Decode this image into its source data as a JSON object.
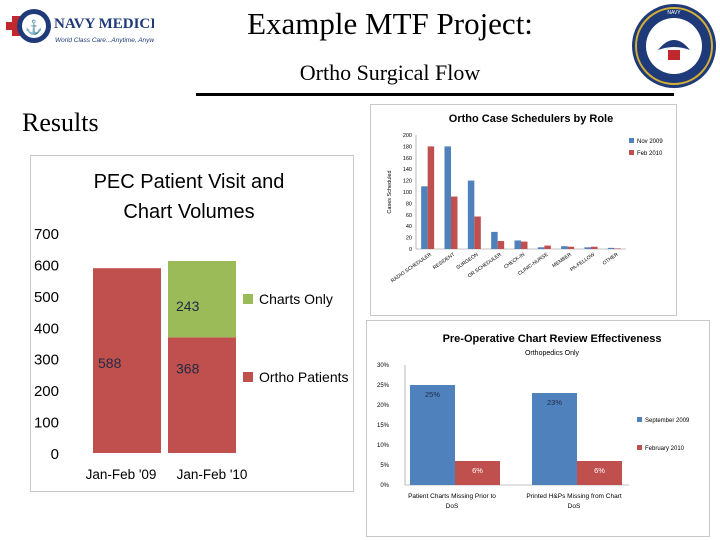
{
  "header": {
    "title": "Example MTF Project:",
    "subtitle": "Ortho Surgical Flow",
    "section_label": "Results",
    "logo_text": "NAVY MEDICINE",
    "logo_tagline": "World Class Care...Anytime, Anywhere",
    "seal_text": "DEPARTMENT OF THE NAVY"
  },
  "chart_data": [
    {
      "type": "bar",
      "stacked": true,
      "title": "PEC Patient Visit and Chart Volumes",
      "categories": [
        "Jan-Feb '09",
        "Jan-Feb '10"
      ],
      "series": [
        {
          "name": "Ortho Patients",
          "color": "#c0504d",
          "values": [
            588,
            368
          ]
        },
        {
          "name": "Charts Only",
          "color": "#9bbb59",
          "values": [
            0,
            243
          ]
        }
      ],
      "data_labels": [
        "588",
        "368",
        "243"
      ],
      "ylim": [
        0,
        700
      ],
      "yticks": [
        "0",
        "100",
        "200",
        "300",
        "400",
        "500",
        "600",
        "700"
      ],
      "grid": false,
      "legend": "right"
    },
    {
      "type": "bar",
      "title": "Ortho Case Schedulers by Role",
      "ylabel": "Cases Scheduled",
      "categories": [
        "RADIO SCHEDULER",
        "RESIDENT",
        "SURGEON",
        "OR SCHEDULER",
        "CHECK-IN",
        "CLINIC-NURSE",
        "MEMBER",
        "PA-FELLOW",
        "OTHER"
      ],
      "series": [
        {
          "name": "Nov 2009",
          "color": "#4f81bd",
          "values": [
            110,
            180,
            120,
            30,
            15,
            3,
            5,
            3,
            2
          ]
        },
        {
          "name": "Feb 2010",
          "color": "#c0504d",
          "values": [
            180,
            92,
            57,
            14,
            13,
            6,
            4,
            4,
            1
          ]
        }
      ],
      "ylim": [
        0,
        200
      ],
      "yticks": [
        "0",
        "20",
        "40",
        "60",
        "80",
        "100",
        "120",
        "140",
        "160",
        "180",
        "200"
      ],
      "grid": false,
      "legend": "top-right"
    },
    {
      "type": "bar",
      "title": "Pre-Operative Chart Review Effectiveness",
      "subtitle": "Orthopedics Only",
      "categories": [
        "Patient Charts Missing Prior to DoS",
        "Printed H&Ps Missing from Chart DoS"
      ],
      "series": [
        {
          "name": "September 2009",
          "color": "#4f81bd",
          "values": [
            25,
            23
          ]
        },
        {
          "name": "February 2010",
          "color": "#c0504d",
          "values": [
            6,
            6
          ]
        }
      ],
      "data_labels": [
        "25%",
        "23%",
        "6%",
        "6%"
      ],
      "ylim": [
        0,
        30
      ],
      "yticks": [
        "0%",
        "5%",
        "10%",
        "15%",
        "20%",
        "25%",
        "30%"
      ],
      "grid": false,
      "legend": "right"
    }
  ]
}
